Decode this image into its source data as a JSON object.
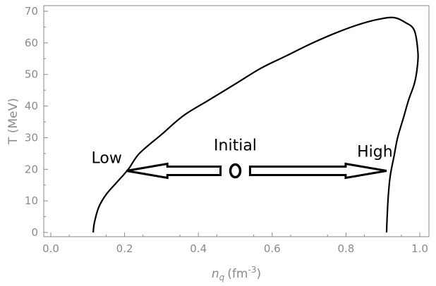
{
  "chart_data": {
    "type": "line",
    "xlabel": "n_q (fm^-3)",
    "xlabel_parts": {
      "base": "n",
      "sub": "q",
      "unit_open": "(fm",
      "sup": "-3",
      "unit_close": ")"
    },
    "ylabel": "T (MeV)",
    "xlim": [
      0.0,
      1.0
    ],
    "ylim": [
      0,
      70
    ],
    "xticks": [
      0.0,
      0.2,
      0.4,
      0.6,
      0.8,
      1.0
    ],
    "xtick_labels": [
      "0.0",
      "0.2",
      "0.4",
      "0.6",
      "0.8",
      "1.0"
    ],
    "yticks": [
      0,
      10,
      20,
      30,
      40,
      50,
      60,
      70
    ],
    "ytick_labels": [
      "0",
      "10",
      "20",
      "30",
      "40",
      "50",
      "60",
      "70"
    ],
    "grid": false,
    "series": [
      {
        "color": "#000000",
        "x": [
          0.115,
          0.118,
          0.13,
          0.15,
          0.18,
          0.21,
          0.24,
          0.3,
          0.36,
          0.43,
          0.5,
          0.57,
          0.64,
          0.71,
          0.78,
          0.84,
          0.89,
          0.93,
          0.96,
          0.985,
          0.995,
          0.993,
          0.985,
          0.97,
          0.955,
          0.94,
          0.93,
          0.92,
          0.915,
          0.912,
          0.91
        ],
        "y": [
          0,
          3,
          8,
          12,
          16,
          20,
          25,
          31,
          37,
          42,
          47,
          52,
          56,
          60,
          63.5,
          66,
          67.5,
          68,
          66.5,
          64,
          57,
          52,
          47,
          42,
          36,
          30,
          24,
          18,
          12,
          6,
          0
        ]
      }
    ],
    "annotations": [
      {
        "text": "Low",
        "x": 0.11,
        "y": 22
      },
      {
        "text": "Initial",
        "x": 0.5,
        "y": 26
      },
      {
        "text": "High",
        "x": 0.83,
        "y": 24
      }
    ],
    "arrows": [
      {
        "from_x": 0.46,
        "to_x": 0.205,
        "y": 19.5
      },
      {
        "from_x": 0.54,
        "to_x": 0.91,
        "y": 19.5
      }
    ],
    "marker": {
      "shape": "ring",
      "x": 0.5,
      "y": 19.5
    }
  }
}
